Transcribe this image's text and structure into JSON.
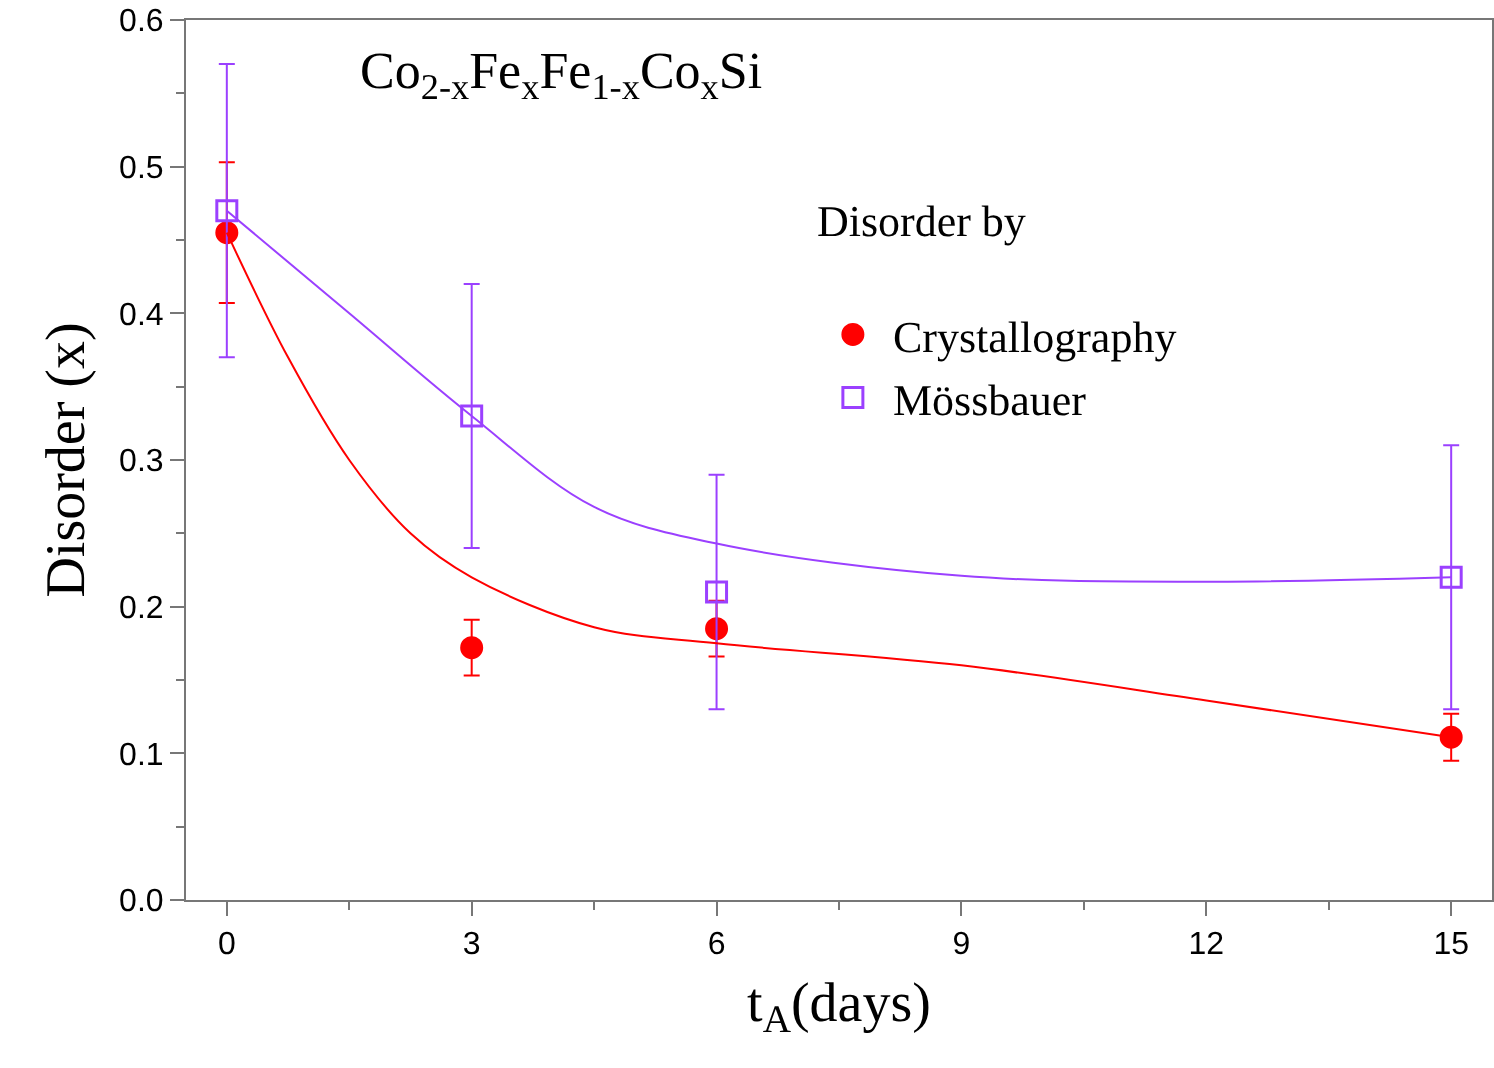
{
  "chart_data": {
    "type": "scatter",
    "xlabel": "t$_{A}$(days)",
    "ylabel": "Disorder (x)",
    "legend_title": "Disorder by",
    "legend": "top right",
    "grid": false,
    "annotations": [
      "Co$_{2-x}$Fe$_{x}$Fe$_{1-x}$Co$_{x}$Si"
    ],
    "xlim": [
      -0.5,
      15.5
    ],
    "xticks": [
      0,
      3,
      6,
      9,
      12,
      15
    ],
    "ylim": [
      0,
      0.6
    ],
    "yticks": [
      {
        "value": 0,
        "label": "0.0"
      },
      {
        "value": 0.1,
        "label": "0.1"
      },
      {
        "value": 0.2,
        "label": "0.2"
      },
      {
        "value": 0.3,
        "label": "0.3"
      },
      {
        "value": 0.4,
        "label": "0.4"
      },
      {
        "value": 0.5,
        "label": "0.5"
      },
      {
        "value": 0.6,
        "label": "0.6"
      }
    ],
    "series": [
      {
        "name": "Crystallography",
        "marker": "circle",
        "color": "#ff0000",
        "x": [
          0,
          3,
          6,
          15
        ],
        "values": [
          0.455,
          0.172,
          0.185,
          0.111
        ],
        "errors": [
          0.048,
          0.019,
          0.019,
          0.016
        ]
      },
      {
        "name": "Mössbauer",
        "marker": "square",
        "color": "#9b40ff",
        "x": [
          0,
          3,
          6,
          15
        ],
        "values": [
          0.47,
          0.33,
          0.21,
          0.22
        ],
        "errors": [
          0.1,
          0.09,
          0.08,
          0.09
        ]
      },
      {
        "type": "line",
        "marker": "none",
        "color": "#ff0000",
        "x": [
          0,
          0.75,
          1.5,
          2.25,
          3,
          4.5,
          6,
          9,
          12,
          15
        ],
        "values": [
          0.455,
          0.37,
          0.3,
          0.25,
          0.22,
          0.186,
          0.175,
          0.16,
          0.136,
          0.111
        ]
      },
      {
        "type": "line",
        "marker": "none",
        "color": "#9b40ff",
        "x": [
          0,
          1.5,
          3,
          4.5,
          6,
          9,
          12,
          15
        ],
        "values": [
          0.47,
          0.4,
          0.33,
          0.268,
          0.243,
          0.221,
          0.217,
          0.22
        ]
      }
    ]
  }
}
